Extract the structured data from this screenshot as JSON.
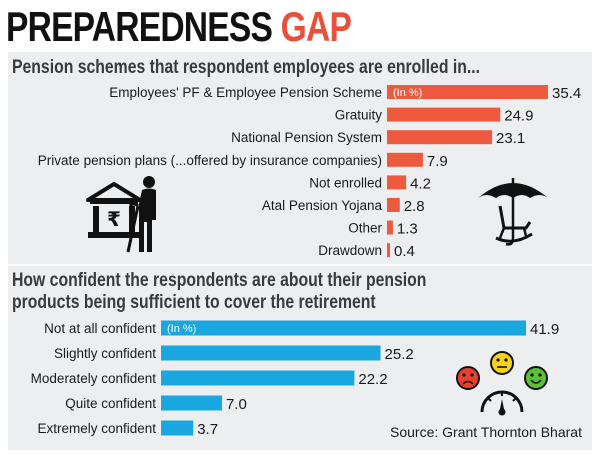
{
  "title": {
    "word1": "PREPAREDNESS",
    "word2": "GAP"
  },
  "colors": {
    "title_dark": "#111111",
    "title_accent": "#e8503a",
    "bar1": "#ee5a3f",
    "bar2": "#1aa7e0",
    "panel": "#eceef0"
  },
  "source": "Source: Grant Thornton Bharat",
  "icons": [
    "bank-rupee-icon",
    "elderly-person-icon",
    "umbrella-rocking-chair-icon",
    "sad-face-icon",
    "neutral-face-icon",
    "happy-face-icon",
    "gauge-icon"
  ],
  "chart_data": [
    {
      "type": "bar",
      "orientation": "horizontal",
      "title": "Pension schemes that respondent employees are enrolled in...",
      "unit_label": "(In %)",
      "categories": [
        "Employees' PF & Employee Pension Scheme",
        "Gratuity",
        "National Pension System",
        "Private pension plans (...offered by insurance companies)",
        "Not enrolled",
        "Atal Pension Yojana",
        "Other",
        "Drawdown"
      ],
      "values": [
        35.4,
        24.9,
        23.1,
        7.9,
        4.2,
        2.8,
        1.3,
        0.4
      ],
      "value_labels": [
        "35.4",
        "24.9",
        "23.1",
        "7.9",
        "4.2",
        "2.8",
        "1.3",
        "0.4"
      ],
      "color": "#ee5a3f"
    },
    {
      "type": "bar",
      "orientation": "horizontal",
      "title_lines": [
        "How confident the respondents are about their pension",
        "products being sufficient to cover the retirement"
      ],
      "unit_label": "(In %)",
      "categories": [
        "Not at all confident",
        "Slightly confident",
        "Moderately confident",
        "Quite confident",
        "Extremely confident"
      ],
      "values": [
        41.9,
        25.2,
        22.2,
        7.0,
        3.7
      ],
      "value_labels": [
        "41.9",
        "25.2",
        "22.2",
        "7.0",
        "3.7"
      ],
      "color": "#1aa7e0"
    }
  ]
}
